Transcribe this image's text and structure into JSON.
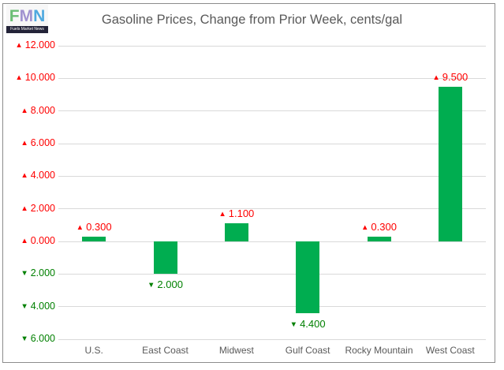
{
  "logo": {
    "letters": [
      "F",
      "M",
      "N"
    ],
    "tagline": "Fuels Market News"
  },
  "title": "Gasoline Prices, Change from Prior Week, cents/gal",
  "chart_data": {
    "type": "bar",
    "title": "Gasoline Prices, Change from Prior Week, cents/gal",
    "categories": [
      "U.S.",
      "East Coast",
      "Midwest",
      "Gulf Coast",
      "Rocky Mountain",
      "West Coast"
    ],
    "values": [
      0.3,
      -2.0,
      1.1,
      -4.4,
      0.3,
      9.5
    ],
    "data_labels": [
      "▲ 0.300",
      "▼ 2.000",
      "▲ 1.100",
      "▼ 4.400",
      "▲ 0.300",
      "▲ 9.500"
    ],
    "xlabel": "",
    "ylabel": "",
    "ylim": [
      -6,
      12
    ],
    "yticks": [
      12,
      10,
      8,
      6,
      4,
      2,
      0,
      -2,
      -4,
      -6
    ],
    "ytick_labels": [
      "▲ 12.000",
      "▲ 10.000",
      "▲ 8.000",
      "▲ 6.000",
      "▲ 4.000",
      "▲ 2.000",
      "▲ 0.000",
      "▼ 2.000",
      "▼ 4.000",
      "▼ 6.000"
    ],
    "value_decimals": 3,
    "up_glyph": "▲",
    "down_glyph": "▼",
    "grid": true,
    "legend": false,
    "bar_color": "#00ad50",
    "positive_label_color": "#fe0000",
    "negative_label_color": "#008000",
    "gridline_color": "#d9d9d9",
    "title_color": "#595959"
  }
}
